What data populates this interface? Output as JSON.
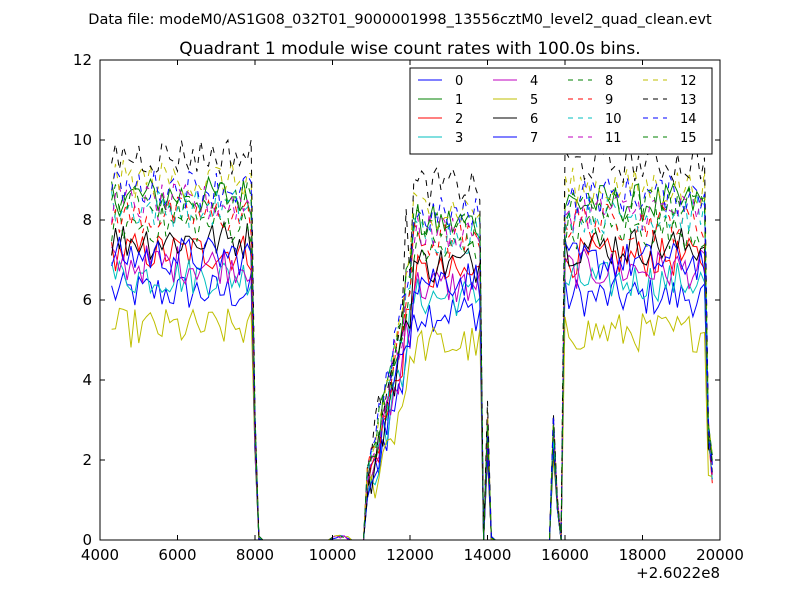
{
  "chart_data": {
    "type": "line",
    "suptitle": "Data file: modeM0/AS1G08_032T01_9000001998_13556cztM0_level2_quad_clean.evt",
    "title": "Quadrant 1 module wise count rates with 100.0s bins.",
    "xlabel": "",
    "ylabel": "",
    "x_offset_label": "+2.6022e8",
    "xlim": [
      4000,
      20000
    ],
    "ylim": [
      0,
      12
    ],
    "xticks": [
      "4000",
      "6000",
      "8000",
      "10000",
      "12000",
      "14000",
      "16000",
      "18000",
      "20000"
    ],
    "yticks": [
      "0",
      "2",
      "4",
      "6",
      "8",
      "10",
      "12"
    ],
    "grid": false,
    "legend": {
      "placement": "top-right",
      "columns": 4
    },
    "bin_width": 100,
    "segments": [
      {
        "start": 4300,
        "end": 7900,
        "scale": 1.0
      },
      {
        "start": 11900,
        "end": 13800,
        "scale": 0.92
      },
      {
        "start": 16000,
        "end": 19600,
        "scale": 0.98
      }
    ],
    "drop_x": [
      8000,
      8100,
      14000,
      14100,
      15700,
      15800,
      19700,
      19800
    ],
    "rise_x": [
      10900,
      11000,
      11100,
      11200,
      11300,
      11400,
      11500,
      11600,
      11700,
      11800
    ],
    "series": [
      {
        "name": "0",
        "color": "#0000ff",
        "dash": "solid",
        "base": 6.2
      },
      {
        "name": "1",
        "color": "#008000",
        "dash": "solid",
        "base": 8.6
      },
      {
        "name": "2",
        "color": "#ff0000",
        "dash": "solid",
        "base": 7.2
      },
      {
        "name": "3",
        "color": "#00bfbf",
        "dash": "solid",
        "base": 6.6
      },
      {
        "name": "4",
        "color": "#bf00bf",
        "dash": "solid",
        "base": 6.9
      },
      {
        "name": "5",
        "color": "#bfbf00",
        "dash": "solid",
        "base": 5.3
      },
      {
        "name": "6",
        "color": "#000000",
        "dash": "solid",
        "base": 7.5
      },
      {
        "name": "7",
        "color": "#0000ff",
        "dash": "solid",
        "base": 7.1
      },
      {
        "name": "8",
        "color": "#008000",
        "dash": "dashed",
        "base": 7.9
      },
      {
        "name": "9",
        "color": "#ff0000",
        "dash": "dashed",
        "base": 8.1
      },
      {
        "name": "10",
        "color": "#00bfbf",
        "dash": "dashed",
        "base": 8.3
      },
      {
        "name": "11",
        "color": "#bf00bf",
        "dash": "dashed",
        "base": 8.4
      },
      {
        "name": "12",
        "color": "#bfbf00",
        "dash": "dashed",
        "base": 9.0
      },
      {
        "name": "13",
        "color": "#000000",
        "dash": "dashed",
        "base": 9.6
      },
      {
        "name": "14",
        "color": "#0000ff",
        "dash": "dashed",
        "base": 8.8
      },
      {
        "name": "15",
        "color": "#008000",
        "dash": "dashed",
        "base": 8.5
      }
    ]
  }
}
